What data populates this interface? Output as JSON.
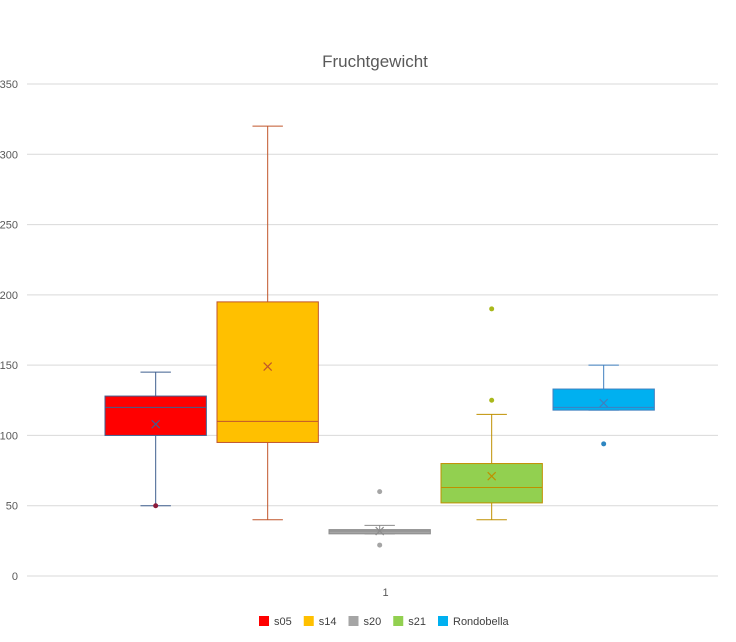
{
  "chart_data": {
    "type": "box",
    "title": "Fruchtgewicht",
    "xlabel": "",
    "ylabel": "",
    "ylim": [
      0,
      350
    ],
    "yticks": [
      0,
      50,
      100,
      150,
      200,
      250,
      300,
      350
    ],
    "categories": [
      "1"
    ],
    "grid": true,
    "legend_position": "bottom",
    "series": [
      {
        "name": "s05",
        "color": "#ff0000",
        "line_color": "#3f5f8f",
        "min": 50,
        "q1": 100,
        "median": 120,
        "q3": 128,
        "max": 145,
        "mean": 108,
        "outliers": [
          50
        ],
        "outlier_color": "#8b1a3a"
      },
      {
        "name": "s14",
        "color": "#ffc000",
        "line_color": "#c0562b",
        "min": 40,
        "q1": 95,
        "median": 110,
        "q3": 195,
        "max": 320,
        "mean": 149,
        "outliers": [],
        "outlier_color": "#c0562b"
      },
      {
        "name": "s20",
        "color": "#a5a5a5",
        "line_color": "#8c8c8c",
        "min": 30,
        "q1": 30,
        "median": 32,
        "q3": 33,
        "max": 36,
        "mean": 32,
        "outliers": [
          60,
          22
        ],
        "outlier_color": "#a5a5a5"
      },
      {
        "name": "s21",
        "color": "#92d050",
        "line_color": "#bf9000",
        "min": 40,
        "q1": 52,
        "median": 63,
        "q3": 80,
        "max": 115,
        "mean": 71,
        "outliers": [
          125,
          190
        ],
        "outlier_color": "#a9b81b"
      },
      {
        "name": "Rondobella",
        "color": "#00b0f0",
        "line_color": "#3f7fbf",
        "min": 118,
        "q1": 118,
        "median": 120,
        "q3": 133,
        "max": 150,
        "mean": 123,
        "outliers": [
          94
        ],
        "outlier_color": "#2e86c1"
      }
    ]
  }
}
